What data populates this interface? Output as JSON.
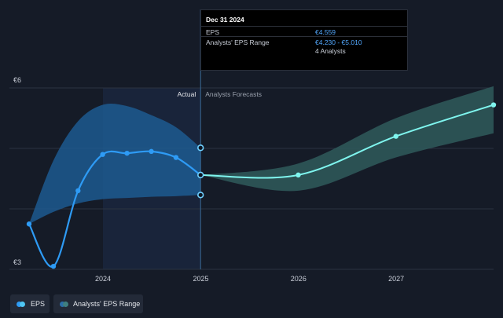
{
  "tooltip": {
    "title": "Dec 31 2024",
    "rows": [
      {
        "label": "EPS",
        "value": "€4.559"
      },
      {
        "label": "Analysts' EPS Range",
        "value": "€4.230 - €5.010"
      }
    ],
    "analysts": "4 Analysts"
  },
  "legend": {
    "eps_label": "EPS",
    "range_label": "Analysts' EPS Range"
  },
  "colors": {
    "eps": "#2e9bf5",
    "forecast": "#7ff5ee",
    "range_actual": "#1d5d94",
    "range_forecast": "#2f5a5c",
    "background": "#151b27"
  },
  "chart_data": {
    "type": "line",
    "ylabels": [
      "€6",
      "€3"
    ],
    "ylim": [
      3,
      6
    ],
    "xticks": [
      "2024",
      "2025",
      "2026",
      "2027"
    ],
    "section_labels": {
      "actual": "Actual",
      "forecast": "Analysts Forecasts"
    },
    "grid": true,
    "series": [
      {
        "name": "EPS",
        "x": [
          "2023-03-31",
          "2023-06-30",
          "2023-09-30",
          "2023-12-31",
          "2024-03-31",
          "2024-06-30",
          "2024-09-30",
          "2024-12-31"
        ],
        "values": [
          3.75,
          3.05,
          4.3,
          4.9,
          4.92,
          4.95,
          4.85,
          4.56
        ]
      },
      {
        "name": "Analysts Forecasts",
        "x": [
          "2024-12-31",
          "2025-12-31",
          "2026-12-31",
          "2027-12-31"
        ],
        "values": [
          4.56,
          4.56,
          5.2,
          5.72
        ]
      }
    ],
    "range": {
      "name": "Analysts' EPS Range",
      "actual_low": [
        3.75,
        3.95,
        4.09,
        4.16,
        4.18,
        4.2,
        4.21,
        4.23
      ],
      "actual_high": [
        3.75,
        4.8,
        5.45,
        5.72,
        5.7,
        5.55,
        5.35,
        5.01
      ],
      "forecast_low": [
        4.56,
        4.3,
        4.85,
        5.25
      ],
      "forecast_high": [
        4.56,
        4.75,
        5.5,
        6.03
      ]
    },
    "tooltip_markers": {
      "x": "2024-12-31",
      "values": [
        5.01,
        4.56,
        4.23
      ]
    }
  }
}
